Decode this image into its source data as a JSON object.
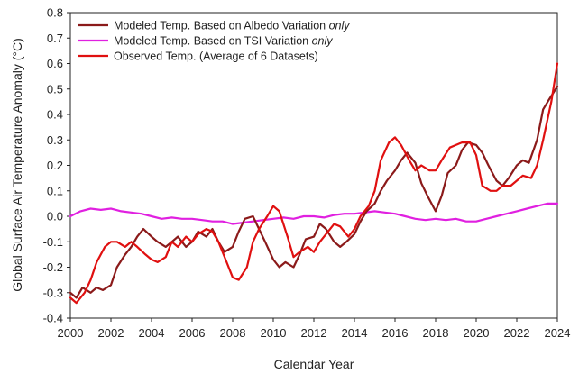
{
  "chart_data": {
    "type": "line",
    "title": "",
    "xlabel": "Calendar Year",
    "ylabel": "Global Surface Air Temperature Anomaly (°C)",
    "xlim": [
      2000,
      2024
    ],
    "ylim": [
      -0.4,
      0.8
    ],
    "xticks": [
      2000,
      2002,
      2004,
      2006,
      2008,
      2010,
      2012,
      2014,
      2016,
      2018,
      2020,
      2022,
      2024
    ],
    "xtick_labels": [
      "2000",
      "2002",
      "2004",
      "2006",
      "2008",
      "2010",
      "2012",
      "2014",
      "2016",
      "2018",
      "2020",
      "2022",
      "2024"
    ],
    "yticks": [
      -0.4,
      -0.3,
      -0.2,
      -0.1,
      0.0,
      0.1,
      0.2,
      0.3,
      0.4,
      0.5,
      0.6,
      0.7,
      0.8
    ],
    "ytick_labels": [
      "-0.4",
      "-0.3",
      "-0.2",
      "-0.1",
      "0.0",
      "0.1",
      "0.2",
      "0.3",
      "0.4",
      "0.5",
      "0.6",
      "0.7",
      "0.8"
    ],
    "grid": false,
    "legend_position": "top-left",
    "series": [
      {
        "name": "Modeled Temp. Based on Albedo Variation",
        "name_suffix": "only",
        "color": "#8b1a1a",
        "x": [
          2000.0,
          2000.3,
          2000.6,
          2001.0,
          2001.3,
          2001.6,
          2002.0,
          2002.3,
          2002.7,
          2003.0,
          2003.3,
          2003.6,
          2004.0,
          2004.3,
          2004.7,
          2005.0,
          2005.3,
          2005.7,
          2006.0,
          2006.3,
          2006.7,
          2007.0,
          2007.3,
          2007.6,
          2008.0,
          2008.3,
          2008.6,
          2009.0,
          2009.3,
          2009.6,
          2010.0,
          2010.3,
          2010.6,
          2011.0,
          2011.3,
          2011.6,
          2012.0,
          2012.3,
          2012.6,
          2013.0,
          2013.3,
          2013.6,
          2014.0,
          2014.3,
          2014.6,
          2015.0,
          2015.3,
          2015.6,
          2016.0,
          2016.3,
          2016.6,
          2017.0,
          2017.3,
          2017.6,
          2018.0,
          2018.3,
          2018.6,
          2019.0,
          2019.3,
          2019.6,
          2020.0,
          2020.3,
          2020.6,
          2021.0,
          2021.3,
          2021.6,
          2022.0,
          2022.3,
          2022.6,
          2023.0,
          2023.3,
          2023.6,
          2024.0
        ],
        "values": [
          -0.3,
          -0.32,
          -0.28,
          -0.3,
          -0.28,
          -0.29,
          -0.27,
          -0.2,
          -0.15,
          -0.12,
          -0.08,
          -0.05,
          -0.08,
          -0.1,
          -0.12,
          -0.1,
          -0.08,
          -0.12,
          -0.1,
          -0.06,
          -0.08,
          -0.05,
          -0.1,
          -0.14,
          -0.12,
          -0.06,
          -0.01,
          0.0,
          -0.05,
          -0.1,
          -0.17,
          -0.2,
          -0.18,
          -0.2,
          -0.15,
          -0.09,
          -0.08,
          -0.03,
          -0.05,
          -0.1,
          -0.12,
          -0.1,
          -0.07,
          -0.02,
          0.02,
          0.05,
          0.1,
          0.14,
          0.18,
          0.22,
          0.25,
          0.21,
          0.13,
          0.08,
          0.02,
          0.08,
          0.17,
          0.2,
          0.26,
          0.29,
          0.28,
          0.25,
          0.2,
          0.14,
          0.12,
          0.15,
          0.2,
          0.22,
          0.21,
          0.3,
          0.42,
          0.46,
          0.51
        ]
      },
      {
        "name": "Modeled Temp. Based on TSI Variation",
        "name_suffix": "only",
        "color": "#e020e0",
        "x": [
          2000.0,
          2000.5,
          2001.0,
          2001.5,
          2002.0,
          2002.5,
          2003.0,
          2003.5,
          2004.0,
          2004.5,
          2005.0,
          2005.5,
          2006.0,
          2006.5,
          2007.0,
          2007.5,
          2008.0,
          2008.5,
          2009.0,
          2009.5,
          2010.0,
          2010.5,
          2011.0,
          2011.5,
          2012.0,
          2012.5,
          2013.0,
          2013.5,
          2014.0,
          2014.5,
          2015.0,
          2015.5,
          2016.0,
          2016.5,
          2017.0,
          2017.5,
          2018.0,
          2018.5,
          2019.0,
          2019.5,
          2020.0,
          2020.5,
          2021.0,
          2021.5,
          2022.0,
          2022.5,
          2023.0,
          2023.5,
          2024.0
        ],
        "values": [
          0.0,
          0.02,
          0.03,
          0.025,
          0.03,
          0.02,
          0.015,
          0.01,
          0.0,
          -0.01,
          -0.005,
          -0.01,
          -0.01,
          -0.015,
          -0.02,
          -0.02,
          -0.03,
          -0.025,
          -0.02,
          -0.015,
          -0.01,
          -0.005,
          -0.01,
          0.0,
          0.0,
          -0.005,
          0.005,
          0.01,
          0.01,
          0.015,
          0.02,
          0.015,
          0.01,
          0.0,
          -0.01,
          -0.015,
          -0.01,
          -0.015,
          -0.01,
          -0.02,
          -0.02,
          -0.01,
          0.0,
          0.01,
          0.02,
          0.03,
          0.04,
          0.05,
          0.05
        ]
      },
      {
        "name": "Observed Temp. (Average of 6 Datasets)",
        "name_suffix": "",
        "color": "#e01010",
        "x": [
          2000.0,
          2000.3,
          2000.7,
          2001.0,
          2001.3,
          2001.7,
          2002.0,
          2002.3,
          2002.7,
          2003.0,
          2003.3,
          2003.7,
          2004.0,
          2004.3,
          2004.7,
          2005.0,
          2005.3,
          2005.7,
          2006.0,
          2006.3,
          2006.7,
          2007.0,
          2007.3,
          2007.7,
          2008.0,
          2008.3,
          2008.7,
          2009.0,
          2009.3,
          2009.7,
          2010.0,
          2010.3,
          2010.7,
          2011.0,
          2011.3,
          2011.7,
          2012.0,
          2012.3,
          2012.7,
          2013.0,
          2013.3,
          2013.7,
          2014.0,
          2014.3,
          2014.7,
          2015.0,
          2015.3,
          2015.7,
          2016.0,
          2016.3,
          2016.7,
          2017.0,
          2017.3,
          2017.7,
          2018.0,
          2018.3,
          2018.7,
          2019.0,
          2019.3,
          2019.7,
          2020.0,
          2020.3,
          2020.7,
          2021.0,
          2021.3,
          2021.7,
          2022.0,
          2022.3,
          2022.7,
          2023.0,
          2023.3,
          2023.7,
          2024.0
        ],
        "values": [
          -0.32,
          -0.34,
          -0.3,
          -0.25,
          -0.18,
          -0.12,
          -0.1,
          -0.1,
          -0.12,
          -0.1,
          -0.12,
          -0.15,
          -0.17,
          -0.18,
          -0.16,
          -0.1,
          -0.12,
          -0.08,
          -0.1,
          -0.07,
          -0.05,
          -0.06,
          -0.1,
          -0.18,
          -0.24,
          -0.25,
          -0.2,
          -0.1,
          -0.05,
          0.0,
          0.04,
          0.02,
          -0.08,
          -0.16,
          -0.14,
          -0.12,
          -0.14,
          -0.1,
          -0.06,
          -0.03,
          -0.04,
          -0.08,
          -0.05,
          0.0,
          0.04,
          0.1,
          0.22,
          0.29,
          0.31,
          0.28,
          0.22,
          0.18,
          0.2,
          0.18,
          0.18,
          0.22,
          0.27,
          0.28,
          0.29,
          0.29,
          0.24,
          0.12,
          0.1,
          0.1,
          0.12,
          0.12,
          0.14,
          0.16,
          0.15,
          0.2,
          0.3,
          0.45,
          0.6
        ]
      }
    ]
  }
}
